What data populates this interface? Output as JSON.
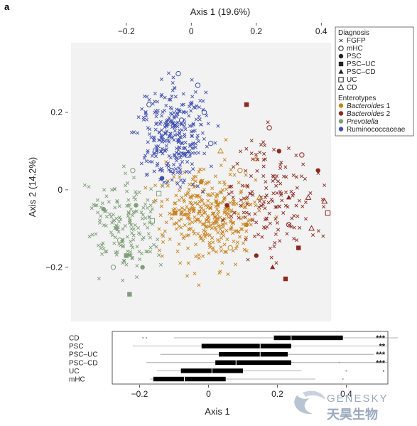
{
  "panel_label": "a",
  "watermark": {
    "latin": "GENESKY",
    "cjk": "天昊生物"
  },
  "chart_data": [
    {
      "type": "scatter",
      "title": "",
      "xlabel_top": "Axis 1 (19.6%)",
      "ylabel": "Axis 2 (14.2%)",
      "xlim": [
        -0.37,
        0.43
      ],
      "ylim": [
        -0.34,
        0.38
      ],
      "xticks": [
        -0.2,
        0,
        0.2,
        0.4
      ],
      "xtick_labels": [
        "−0.2",
        "0",
        "0.2",
        "0.4"
      ],
      "yticks": [
        -0.2,
        0,
        0.2
      ],
      "ytick_labels": [
        "−0.2",
        "0",
        "0.2"
      ],
      "background": "#f2f2f2",
      "grid": false,
      "legend_position": "top-right",
      "legend": {
        "diagnosis_title": "Diagnosis",
        "diagnosis": [
          {
            "label": "FGFP",
            "marker": "x"
          },
          {
            "label": "mHC",
            "marker": "circle-open"
          },
          {
            "label": "PSC",
            "marker": "circle"
          },
          {
            "label": "PSC–UC",
            "marker": "square"
          },
          {
            "label": "PSC–CD",
            "marker": "triangle"
          },
          {
            "label": "UC",
            "marker": "square-open"
          },
          {
            "label": "CD",
            "marker": "triangle-open"
          }
        ],
        "enterotypes_title": "Enterotypes",
        "enterotypes": [
          {
            "label": "Bacteroides",
            "suffix": " 1",
            "italic": true,
            "color": "#c8821e"
          },
          {
            "label": "Bacteroides",
            "suffix": " 2",
            "italic": true,
            "color": "#8b2a22"
          },
          {
            "label": "Prevotella",
            "suffix": "",
            "italic": true,
            "color": "#7e9e78"
          },
          {
            "label": "Ruminococcaceae",
            "suffix": "",
            "italic": false,
            "color": "#3f4fb0"
          }
        ]
      },
      "series": [
        {
          "name": "Bacteroides 1",
          "color": "#c8821e",
          "center": [
            0.06,
            -0.07
          ],
          "spread": [
            0.1,
            0.08
          ],
          "n": 360,
          "highlights": [
            [
              0.03,
              0.02,
              "circle"
            ],
            [
              0.15,
              0.05,
              "circle-open"
            ],
            [
              0.05,
              -0.09,
              "square-open"
            ],
            [
              0.21,
              -0.02,
              "triangle-open"
            ],
            [
              0.17,
              -0.09,
              "circle"
            ],
            [
              -0.05,
              -0.06,
              "square"
            ],
            [
              0.09,
              0.1,
              "triangle-open"
            ],
            [
              0.12,
              -0.15,
              "circle-open"
            ],
            [
              0.2,
              0.08,
              "triangle-open"
            ]
          ]
        },
        {
          "name": "Bacteroides 2",
          "color": "#8b2a22",
          "center": [
            0.25,
            -0.02
          ],
          "spread": [
            0.1,
            0.1
          ],
          "n": 150,
          "highlights": [
            [
              0.24,
              0.16,
              "circle-open"
            ],
            [
              0.27,
              0.1,
              "circle"
            ],
            [
              0.3,
              -0.02,
              "triangle"
            ],
            [
              0.36,
              -0.02,
              "triangle-open"
            ],
            [
              0.41,
              -0.03,
              "triangle-open"
            ],
            [
              0.44,
              -0.03,
              "triangle-open"
            ],
            [
              0.37,
              -0.1,
              "triangle-open"
            ],
            [
              0.3,
              -0.09,
              "circle-open"
            ],
            [
              0.33,
              -0.15,
              "square"
            ],
            [
              0.2,
              -0.17,
              "circle"
            ],
            [
              0.17,
              0.22,
              "square"
            ],
            [
              0.46,
              0.0,
              "triangle-open"
            ],
            [
              0.39,
              0.05,
              "circle"
            ],
            [
              0.34,
              0.09,
              "circle-open"
            ],
            [
              0.25,
              -0.2,
              "triangle"
            ],
            [
              0.29,
              -0.23,
              "square"
            ],
            [
              0.11,
              -0.04,
              "circle"
            ],
            [
              0.42,
              -0.06,
              "square-open"
            ]
          ]
        },
        {
          "name": "Prevotella",
          "color": "#7e9e78",
          "center": [
            -0.2,
            -0.09
          ],
          "spread": [
            0.07,
            0.09
          ],
          "n": 170,
          "highlights": [
            [
              -0.17,
              -0.04,
              "circle"
            ],
            [
              -0.22,
              -0.13,
              "circle-open"
            ],
            [
              -0.12,
              -0.08,
              "square-open"
            ],
            [
              -0.24,
              -0.2,
              "circle-open"
            ],
            [
              -0.2,
              -0.17,
              "square"
            ],
            [
              -0.27,
              -0.05,
              "circle"
            ],
            [
              -0.15,
              -0.2,
              "circle"
            ],
            [
              -0.19,
              -0.27,
              "square"
            ],
            [
              -0.1,
              -0.01,
              "square-open"
            ],
            [
              -0.18,
              0.05,
              "circle-open"
            ]
          ]
        },
        {
          "name": "Ruminococcaceae",
          "color": "#3f4fb0",
          "center": [
            -0.05,
            0.14
          ],
          "spread": [
            0.07,
            0.085
          ],
          "n": 300,
          "highlights": [
            [
              -0.04,
              0.3,
              "circle-open"
            ],
            [
              -0.13,
              0.22,
              "circle-open"
            ],
            [
              -0.03,
              0.18,
              "circle-open"
            ],
            [
              -0.11,
              0.1,
              "square-open"
            ],
            [
              -0.06,
              0.05,
              "circle-open"
            ],
            [
              0.02,
              0.27,
              "circle-open"
            ],
            [
              0.06,
              0.12,
              "circle-open"
            ],
            [
              -0.09,
              0.03,
              "circle"
            ],
            [
              -0.01,
              0.09,
              "square-open"
            ],
            [
              0.04,
              0.2,
              "circle-open"
            ]
          ]
        }
      ]
    },
    {
      "type": "boxplot",
      "title": "",
      "xlabel": "Axis 1",
      "xlim": [
        -0.37,
        0.43
      ],
      "xticks": [
        -0.2,
        0,
        0.2,
        0.4
      ],
      "xtick_labels": [
        "−0.2",
        "0",
        "0.2",
        "0.4"
      ],
      "groups": [
        {
          "label": "CD",
          "whisker": [
            -0.1,
            0.55
          ],
          "q1": 0.19,
          "median": 0.24,
          "q3": 0.39,
          "outliers": [
            -0.19,
            -0.18
          ],
          "sig": "***"
        },
        {
          "label": "PSC",
          "whisker": [
            -0.22,
            0.52
          ],
          "q1": -0.02,
          "median": 0.15,
          "q3": 0.24,
          "outliers": [],
          "sig": "**"
        },
        {
          "label": "PSC–UC",
          "whisker": [
            -0.14,
            0.48
          ],
          "q1": 0.03,
          "median": 0.15,
          "q3": 0.23,
          "outliers": [],
          "sig": "***"
        },
        {
          "label": "PSC–CD",
          "whisker": [
            -0.18,
            0.52
          ],
          "q1": 0.02,
          "median": 0.08,
          "q3": 0.24,
          "outliers": [
            0.38
          ],
          "sig": "***"
        },
        {
          "label": "UC",
          "whisker": [
            -0.15,
            0.27
          ],
          "q1": -0.08,
          "median": 0.01,
          "q3": 0.1,
          "outliers": [
            0.4
          ],
          "sig": "·"
        },
        {
          "label": "mHC",
          "whisker": [
            -0.17,
            0.31
          ],
          "q1": -0.16,
          "median": -0.07,
          "q3": 0.05,
          "outliers": [
            0.39
          ],
          "sig": ""
        }
      ]
    }
  ]
}
